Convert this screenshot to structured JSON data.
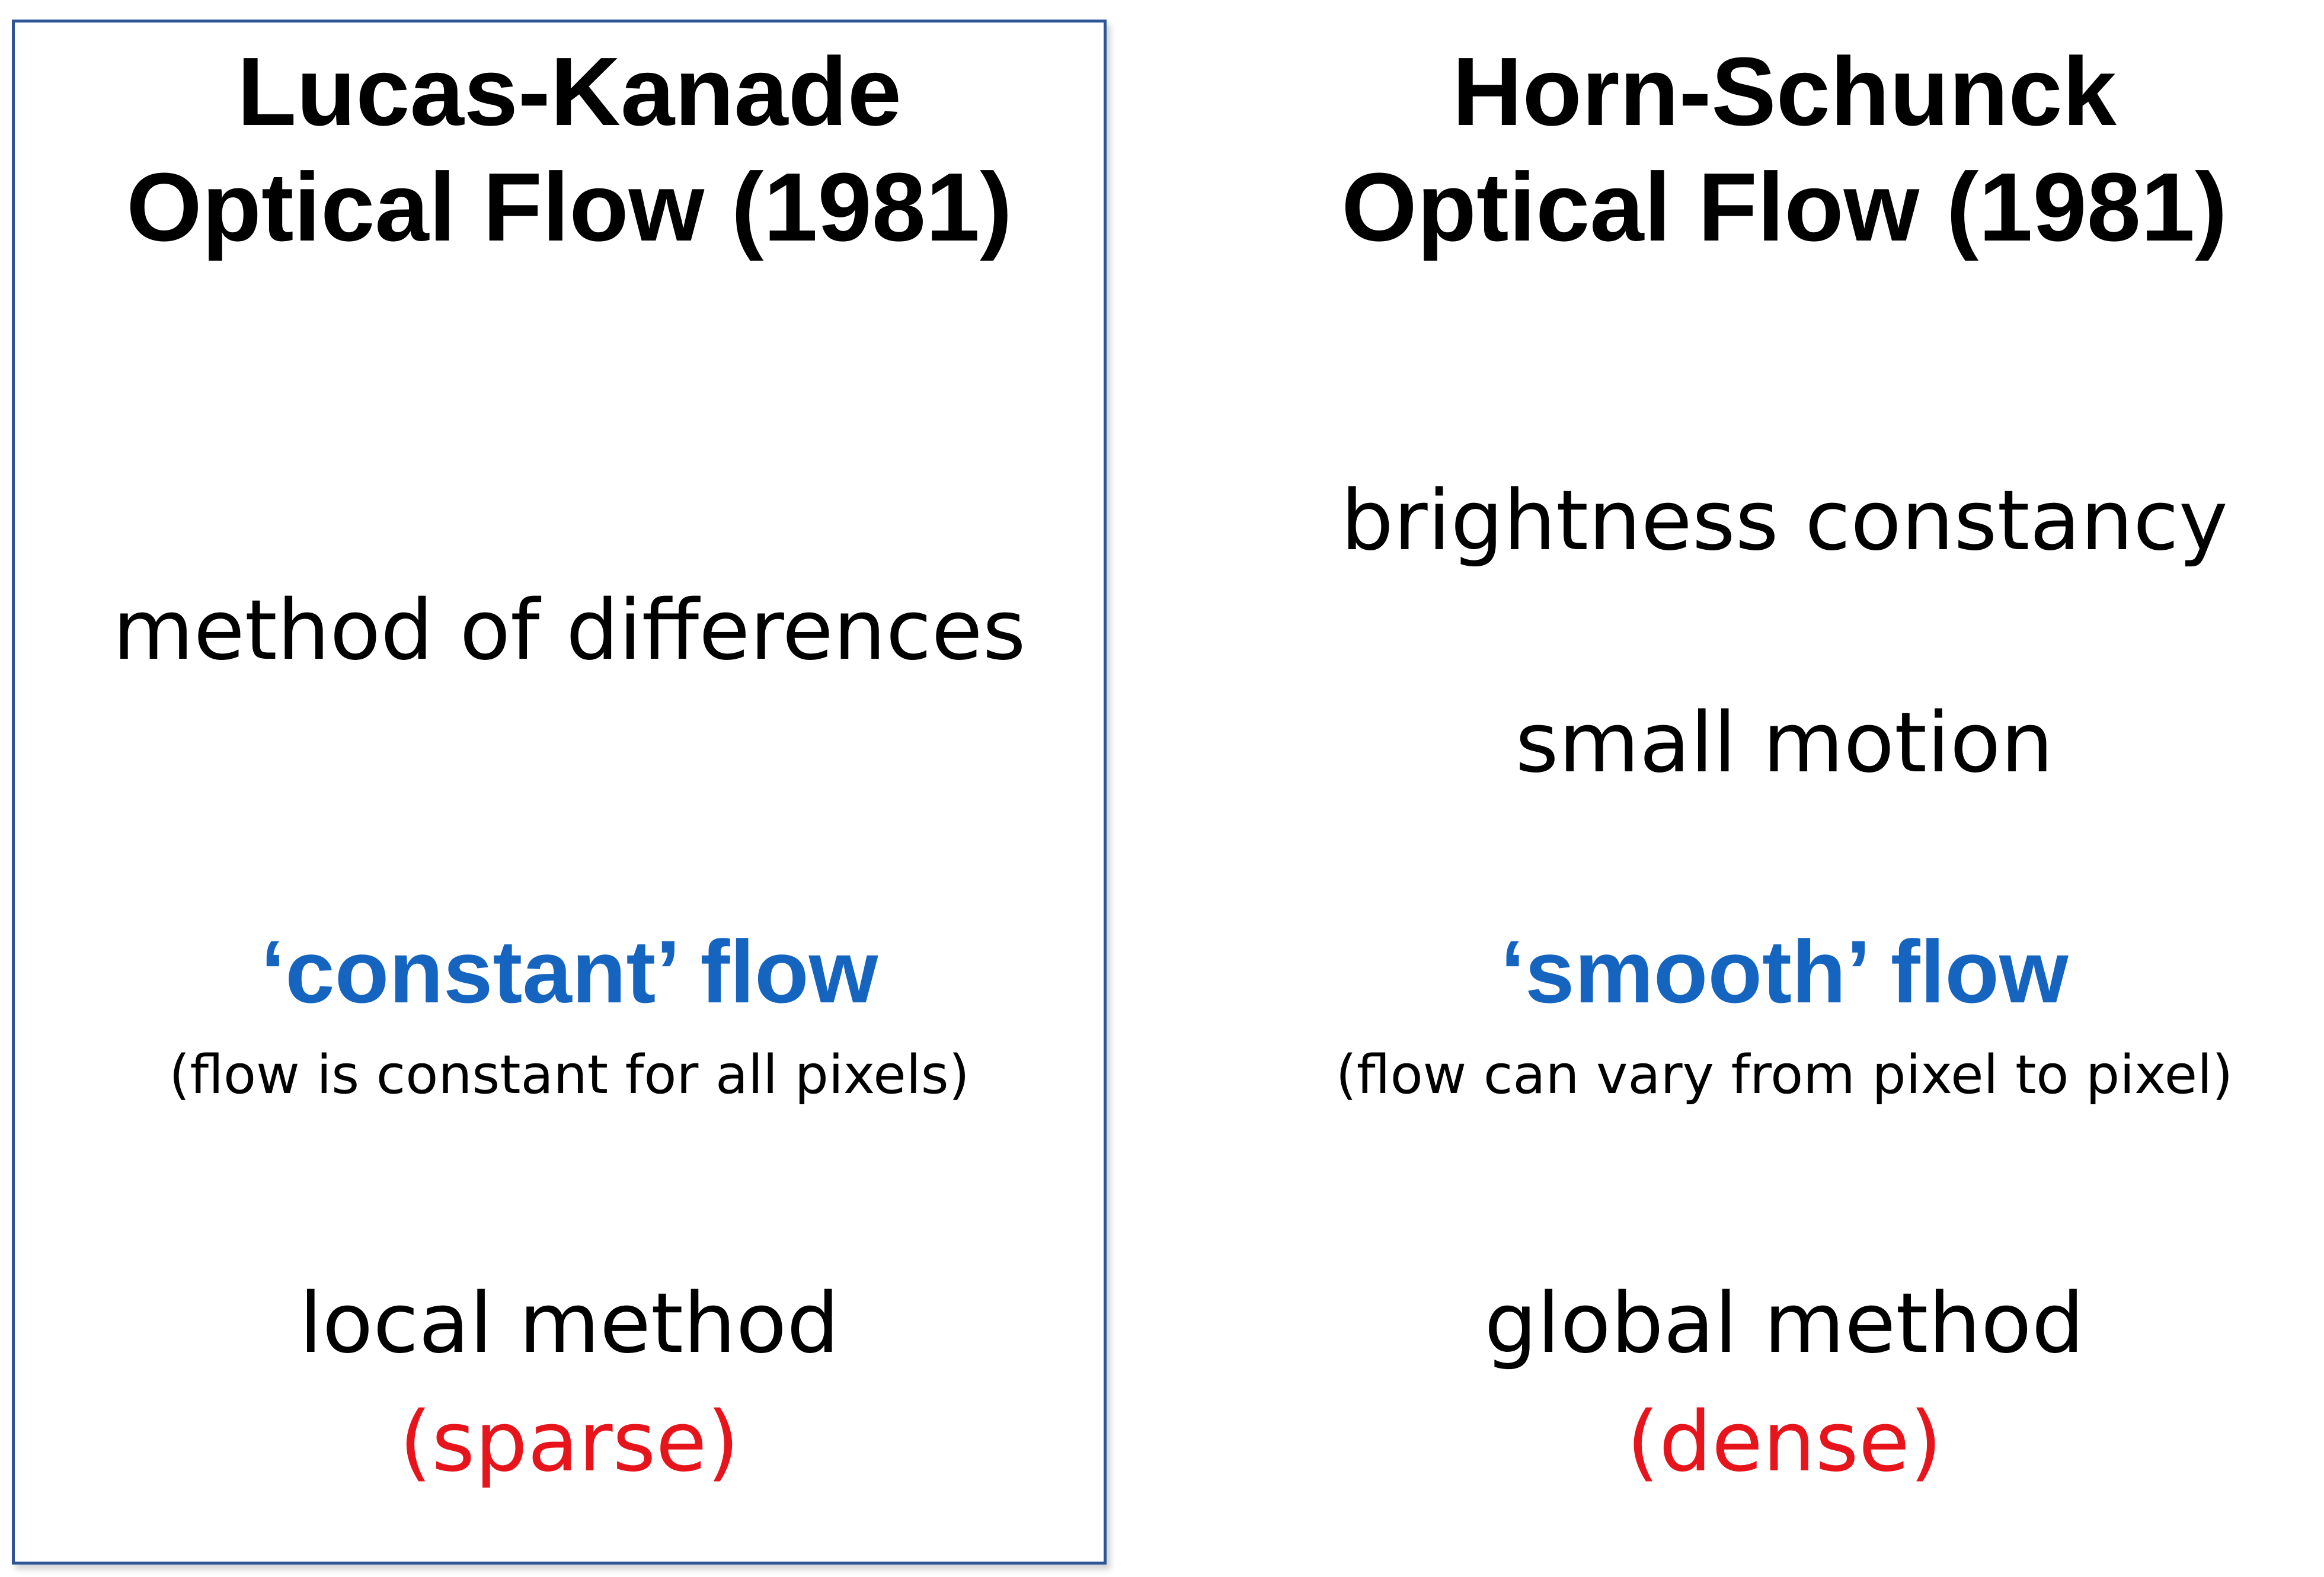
{
  "colors": {
    "box_border": "#2E5597",
    "blue_emphasis": "#1565C0",
    "red_emphasis": "#E8141B",
    "text": "#000000"
  },
  "left": {
    "title_line1": "Lucas-Kanade",
    "title_line2": "Optical Flow (1981)",
    "assumption": "method of differences",
    "flow": "‘constant’ flow",
    "flow_note": "(flow is constant for all pixels)",
    "method": "local method",
    "density": "(sparse)"
  },
  "right": {
    "title_line1": "Horn-Schunck",
    "title_line2": "Optical Flow (1981)",
    "assumption1": "brightness constancy",
    "assumption2": "small motion",
    "flow": "‘smooth’ flow",
    "flow_note": "(flow can vary from pixel to pixel)",
    "method": "global method",
    "density": "(dense)"
  }
}
